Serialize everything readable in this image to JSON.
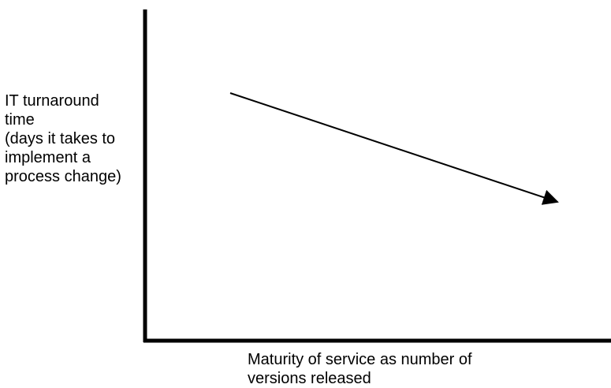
{
  "diagram": {
    "y_axis_label_lines": [
      "IT turnaround",
      "time",
      "(days it takes to",
      "implement a",
      "process change)"
    ],
    "x_axis_label_lines": [
      "Maturity of service as number of",
      "versions released"
    ],
    "trend": "decreasing",
    "colors": {
      "ink": "#000000",
      "background": "#ffffff"
    }
  }
}
